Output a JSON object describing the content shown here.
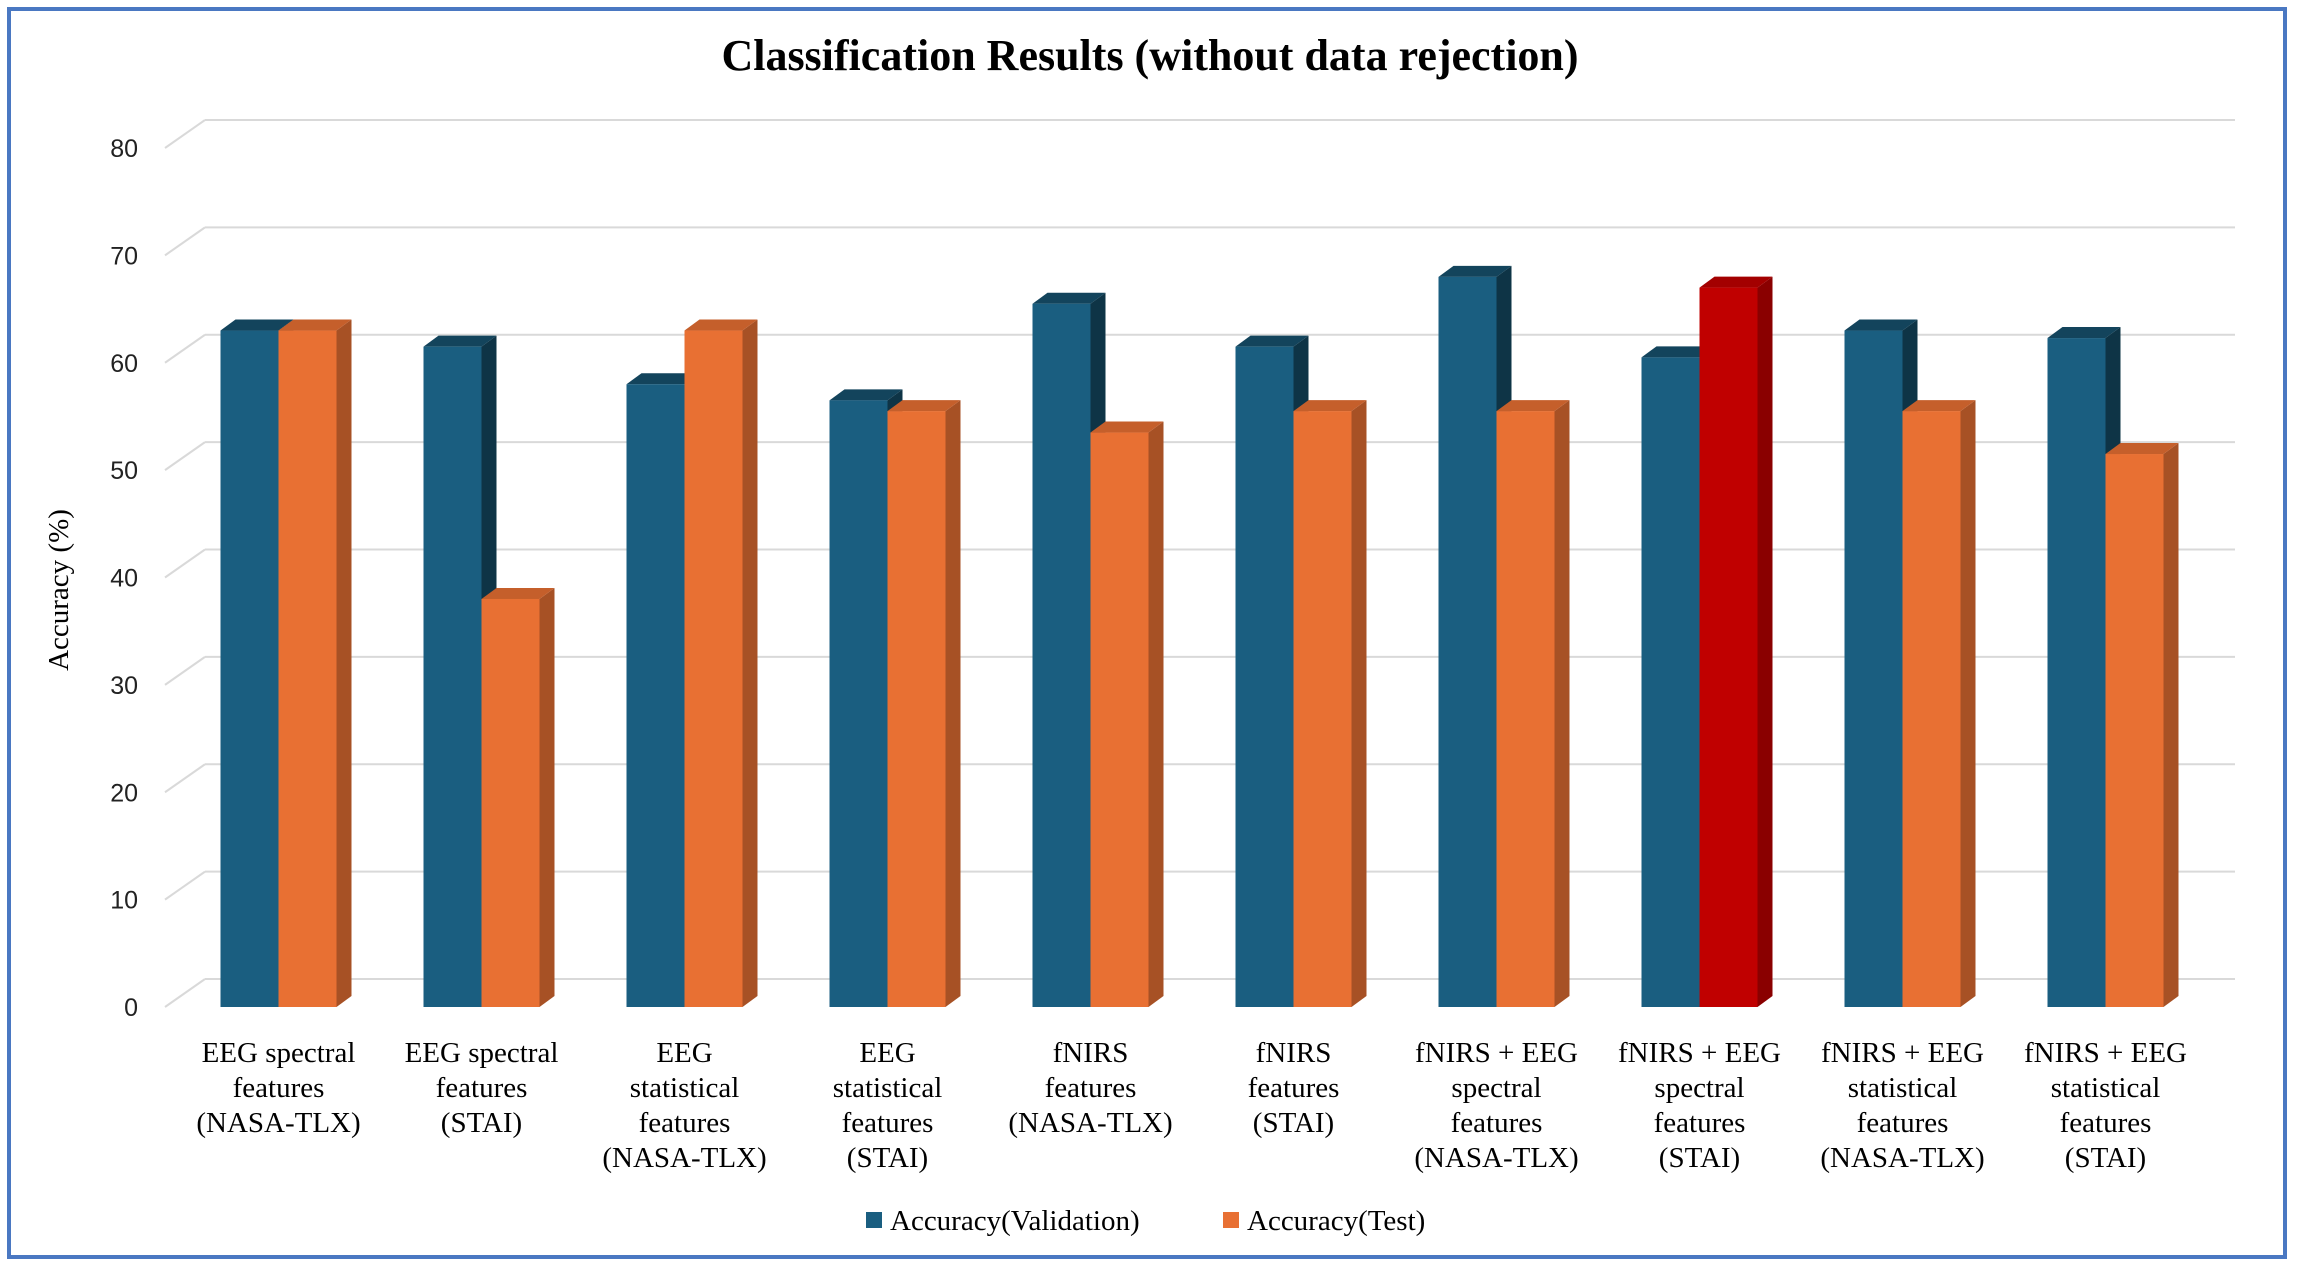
{
  "chart_data": {
    "type": "bar",
    "title": "Classification Results (without data rejection)",
    "ylabel": "Accuracy (%)",
    "ylim": [
      0,
      80
    ],
    "yticks": [
      0,
      10,
      20,
      30,
      40,
      50,
      60,
      70,
      80
    ],
    "grid": true,
    "legend_position": "bottom",
    "categories": [
      [
        "EEG spectral",
        "features",
        "(NASA-TLX)"
      ],
      [
        "EEG spectral",
        "features",
        "(STAI)"
      ],
      [
        "EEG",
        "statistical",
        "features",
        "(NASA-TLX)"
      ],
      [
        "EEG",
        "statistical",
        "features",
        "(STAI)"
      ],
      [
        "fNIRS",
        "features",
        "(NASA-TLX)"
      ],
      [
        "fNIRS",
        "features",
        "(STAI)"
      ],
      [
        "fNIRS + EEG",
        "spectral",
        "features",
        "(NASA-TLX)"
      ],
      [
        "fNIRS + EEG",
        "spectral",
        "features",
        "(STAI)"
      ],
      [
        "fNIRS + EEG",
        "statistical",
        "features",
        "(NASA-TLX)"
      ],
      [
        "fNIRS + EEG",
        "statistical",
        "features",
        "(STAI)"
      ]
    ],
    "series": [
      {
        "name": "Accuracy(Validation)",
        "color": "#1a5e80",
        "values": [
          63,
          61.5,
          58,
          56.5,
          65.5,
          61.5,
          68,
          60.5,
          63,
          62.3
        ]
      },
      {
        "name": "Accuracy(Test)",
        "color": "#e87033",
        "values": [
          63,
          38,
          63,
          55.5,
          53.5,
          55.5,
          55.5,
          67,
          55.5,
          51.5
        ]
      }
    ],
    "highlight": {
      "series": 1,
      "index": 7,
      "color": "#c00000"
    }
  }
}
